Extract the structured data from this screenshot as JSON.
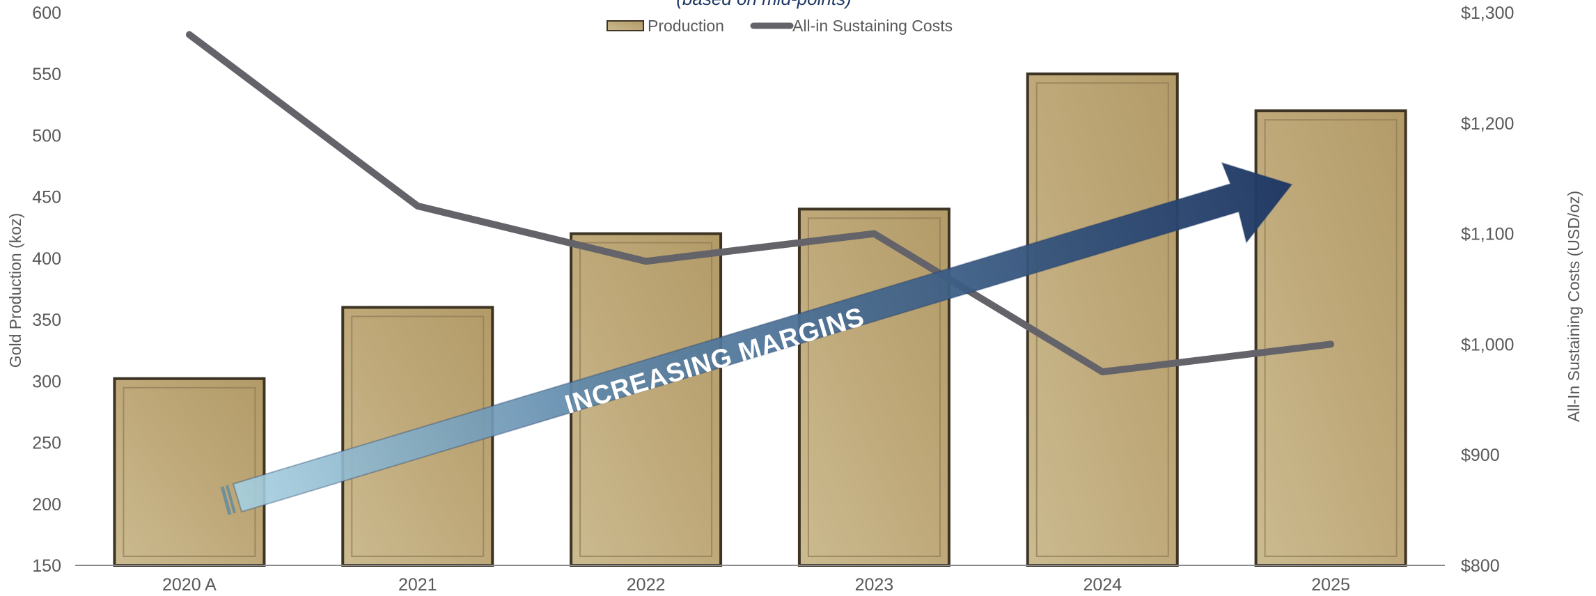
{
  "chart_data": {
    "type": "bar",
    "subtitle": "(based on mid-points)",
    "categories": [
      "2020 A",
      "2021",
      "2022",
      "2023",
      "2024",
      "2025"
    ],
    "series": [
      {
        "name": "Production",
        "type": "bar",
        "axis": "left",
        "values": [
          302,
          360,
          420,
          440,
          550,
          520
        ]
      },
      {
        "name": "All-in Sustaining Costs",
        "type": "line",
        "axis": "right",
        "values": [
          1280,
          1125,
          1075,
          1100,
          975,
          1000
        ]
      }
    ],
    "ylabel": "Gold Production (koz)",
    "ylim": [
      150,
      600
    ],
    "yticks": [
      "150",
      "200",
      "250",
      "300",
      "350",
      "400",
      "450",
      "500",
      "550",
      "600"
    ],
    "y2label": "All-In Sustaining Costs (USD/oz)",
    "y2lim": [
      800,
      1300
    ],
    "y2ticks": [
      "$800",
      "$900",
      "$1,000",
      "$1,100",
      "$1,200",
      "$1,300"
    ],
    "annotation": "INCREASING MARGINS",
    "legend_position": "top-center",
    "grid": false,
    "colors": {
      "bar": "#bfa97a",
      "bar_edge": "#3d3424",
      "line": "#636369",
      "arrow_start": "#a9d3e3",
      "arrow_end": "#1f3864",
      "subtitle": "#1f3864",
      "text": "#595959"
    }
  }
}
